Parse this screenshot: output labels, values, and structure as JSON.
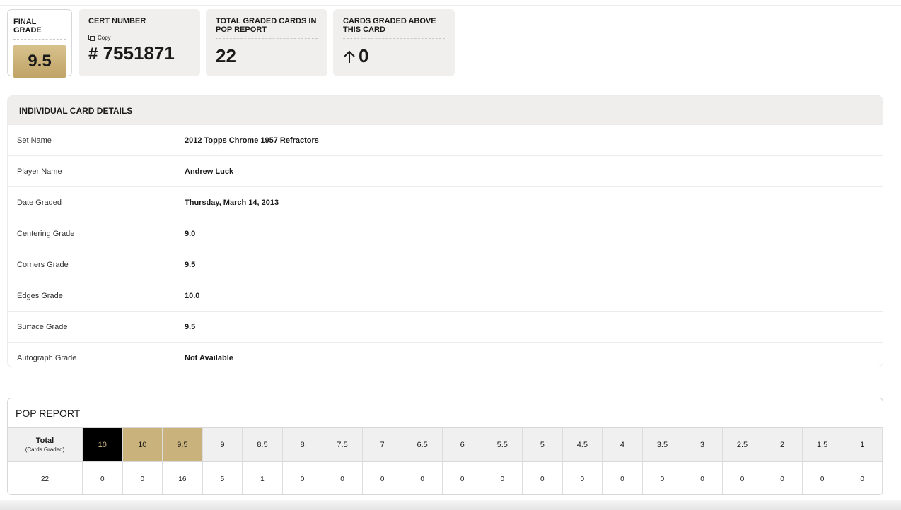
{
  "summary": {
    "final_grade": {
      "label": "FINAL GRADE",
      "value": "9.5"
    },
    "cert_number": {
      "label": "CERT NUMBER",
      "copy": "Copy",
      "prefix": "#",
      "value": "7551871"
    },
    "total_graded": {
      "label": "TOTAL GRADED CARDS IN POP REPORT",
      "value": "22"
    },
    "graded_above": {
      "label": "CARDS GRADED ABOVE THIS CARD",
      "value": "0"
    }
  },
  "card_details": {
    "title": "INDIVIDUAL CARD DETAILS",
    "rows": [
      [
        "Set Name",
        "2012 Topps Chrome 1957 Refractors"
      ],
      [
        "Player Name",
        "Andrew Luck"
      ],
      [
        "Date Graded",
        "Thursday, March 14, 2013"
      ],
      [
        "Centering Grade",
        "9.0"
      ],
      [
        "Corners Grade",
        "9.5"
      ],
      [
        "Edges Grade",
        "10.0"
      ],
      [
        "Surface Grade",
        "9.5"
      ],
      [
        "Autograph Grade",
        "Not Available"
      ]
    ]
  },
  "pop_report": {
    "title": "POP REPORT",
    "header": {
      "total": "Total",
      "total_note": "(Cards Graded)",
      "grades": [
        "10",
        "10",
        "9.5",
        "9",
        "8.5",
        "8",
        "7.5",
        "7",
        "6.5",
        "6",
        "5.5",
        "5",
        "4.5",
        "4",
        "3.5",
        "3",
        "2.5",
        "2",
        "1.5",
        "1"
      ]
    },
    "counts": {
      "total": "22",
      "grades": [
        "0",
        "0",
        "16",
        "5",
        "1",
        "0",
        "0",
        "0",
        "0",
        "0",
        "0",
        "0",
        "0",
        "0",
        "0",
        "0",
        "0",
        "0",
        "0",
        "0"
      ]
    }
  }
}
